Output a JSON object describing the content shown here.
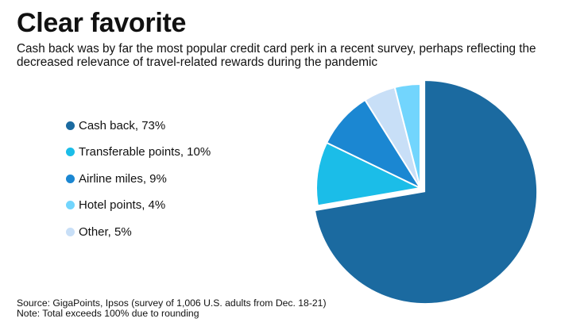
{
  "header": {
    "title": "Clear favorite",
    "subtitle": "Cash back was by far the most popular credit card perk in a recent survey, perhaps reflecting the decreased relevance of travel-related rewards during the pandemic"
  },
  "legend": {
    "items": [
      {
        "label": "Cash back, 73%",
        "color": "#1b6aa0"
      },
      {
        "label": "Transferable points, 10%",
        "color": "#1bbde8"
      },
      {
        "label": "Airline miles, 9%",
        "color": "#1b87d2"
      },
      {
        "label": "Hotel points, 4%",
        "color": "#72d5fd"
      },
      {
        "label": "Other, 5%",
        "color": "#c8dff7"
      }
    ]
  },
  "footer": {
    "source": "Source: GigaPoints, Ipsos (survey of 1,006 U.S. adults from Dec. 18-21)",
    "note": "Note: Total exceeds 100% due to rounding"
  },
  "chart_data": {
    "type": "pie",
    "title": "Clear favorite",
    "subtitle": "Cash back was by far the most popular credit card perk in a recent survey, perhaps reflecting the decreased relevance of travel-related rewards during the pandemic",
    "categories": [
      "Cash back",
      "Transferable points",
      "Airline miles",
      "Other",
      "Hotel points"
    ],
    "values": [
      73,
      10,
      9,
      5,
      4
    ],
    "unit": "%",
    "colors": [
      "#1b6aa0",
      "#1bbde8",
      "#1b87d2",
      "#c8dff7",
      "#72d5fd"
    ],
    "exploded": [
      "Cash back"
    ],
    "start_angle": "12 o'clock, clockwise",
    "legend_position": "left",
    "annotations": [
      "Note: Total exceeds 100% due to rounding"
    ],
    "source": "Source: GigaPoints, Ipsos (survey of 1,006 U.S. adults from Dec. 18-21)"
  }
}
